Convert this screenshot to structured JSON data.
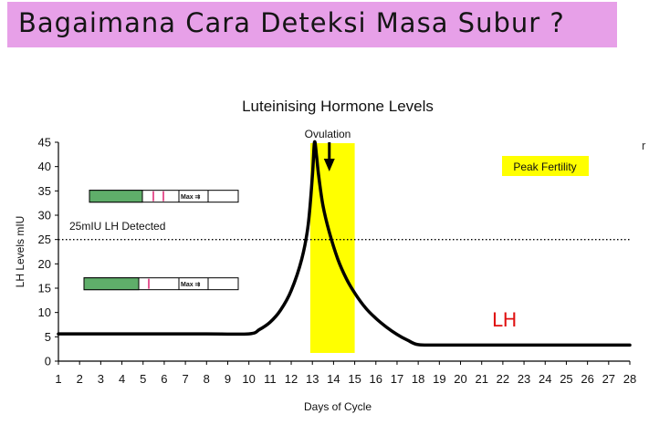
{
  "banner": {
    "title": "Bagaimana Cara Deteksi Masa Subur ?",
    "bg_color": "#e7a0e8"
  },
  "stray_mark": "r",
  "chart_data": {
    "type": "line",
    "title": "Luteinising Hormone Levels",
    "xlabel": "Days of Cycle",
    "ylabel": "LH Levels mIU",
    "xlim": [
      1,
      28
    ],
    "ylim": [
      0,
      45
    ],
    "xticks": [
      1,
      2,
      3,
      4,
      5,
      6,
      7,
      8,
      9,
      10,
      11,
      12,
      13,
      14,
      15,
      16,
      17,
      18,
      19,
      20,
      21,
      22,
      23,
      24,
      25,
      26,
      27,
      28
    ],
    "yticks": [
      0,
      5,
      10,
      15,
      20,
      25,
      30,
      35,
      40,
      45
    ],
    "grid": false,
    "series": [
      {
        "name": "LH",
        "color": "#000000",
        "x": [
          1,
          4,
          8,
          10,
          10.5,
          11,
          11.5,
          12,
          12.5,
          12.8,
          13.0,
          13.1,
          13.2,
          13.3,
          13.5,
          13.8,
          14.2,
          14.6,
          15.0,
          15.5,
          16.0,
          16.5,
          17.0,
          17.5,
          18.0,
          19,
          22,
          25,
          28
        ],
        "y": [
          5.6,
          5.6,
          5.6,
          5.6,
          6.5,
          8.0,
          10.5,
          14.5,
          21.0,
          28.0,
          38.0,
          45.0,
          42.0,
          38.0,
          32.0,
          26.5,
          21.0,
          17.0,
          14.0,
          11.0,
          8.8,
          7.0,
          5.5,
          4.3,
          3.4,
          3.3,
          3.3,
          3.3,
          3.3
        ]
      }
    ],
    "threshold": {
      "y": 25,
      "label": "25mIU LH Detected",
      "style": "dotted"
    },
    "highlight": {
      "x_start": 12.9,
      "x_end": 15.0,
      "color": "#ffff00",
      "label": "Peak Fertility"
    },
    "ovulation": {
      "label": "Ovulation",
      "x": 13.8
    },
    "handwritten_label": {
      "text": "LH",
      "color": "#e01010",
      "x": 22,
      "y": 7.5
    },
    "test_strips": [
      {
        "label": "Max",
        "arrow": "⇉",
        "level_y": 34,
        "pink_lines": 2
      },
      {
        "label": "Max",
        "arrow": "⇉",
        "level_y": 16,
        "pink_lines": 1
      }
    ]
  }
}
